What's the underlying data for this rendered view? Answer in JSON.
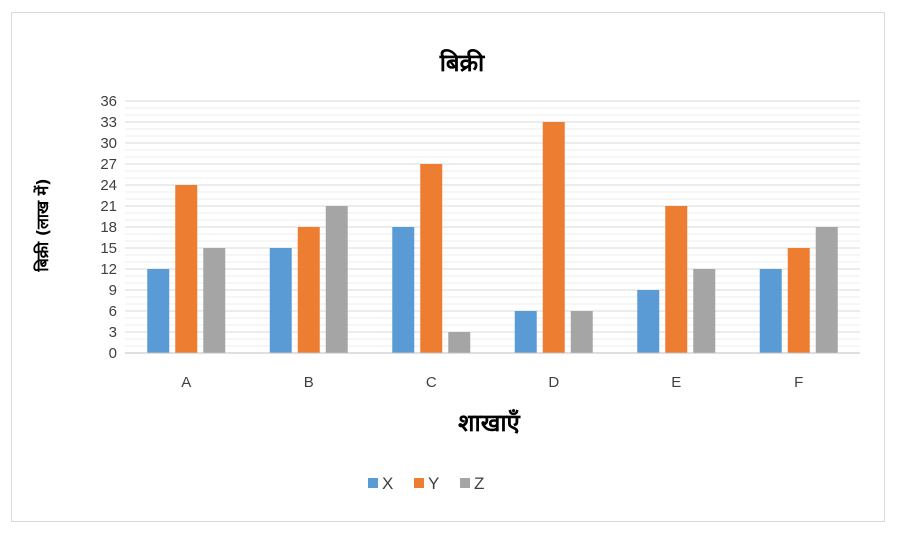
{
  "chart_data": {
    "type": "bar",
    "title": "बिक्री",
    "xlabel": "शाखाएँ",
    "ylabel": "बिक्री (लाख में)",
    "categories": [
      "A",
      "B",
      "C",
      "D",
      "E",
      "F"
    ],
    "series": [
      {
        "name": "X",
        "color": "#5b9bd5",
        "values": [
          12,
          15,
          18,
          6,
          9,
          12
        ]
      },
      {
        "name": "Y",
        "color": "#ed7d31",
        "values": [
          24,
          18,
          27,
          33,
          21,
          15
        ]
      },
      {
        "name": "Z",
        "color": "#a5a5a5",
        "values": [
          15,
          21,
          3,
          6,
          12,
          18
        ]
      }
    ],
    "ylim": [
      0,
      36
    ],
    "yticks": [
      0,
      3,
      6,
      9,
      12,
      15,
      18,
      21,
      24,
      27,
      30,
      33,
      36
    ],
    "grid": true,
    "legend_position": "bottom"
  }
}
